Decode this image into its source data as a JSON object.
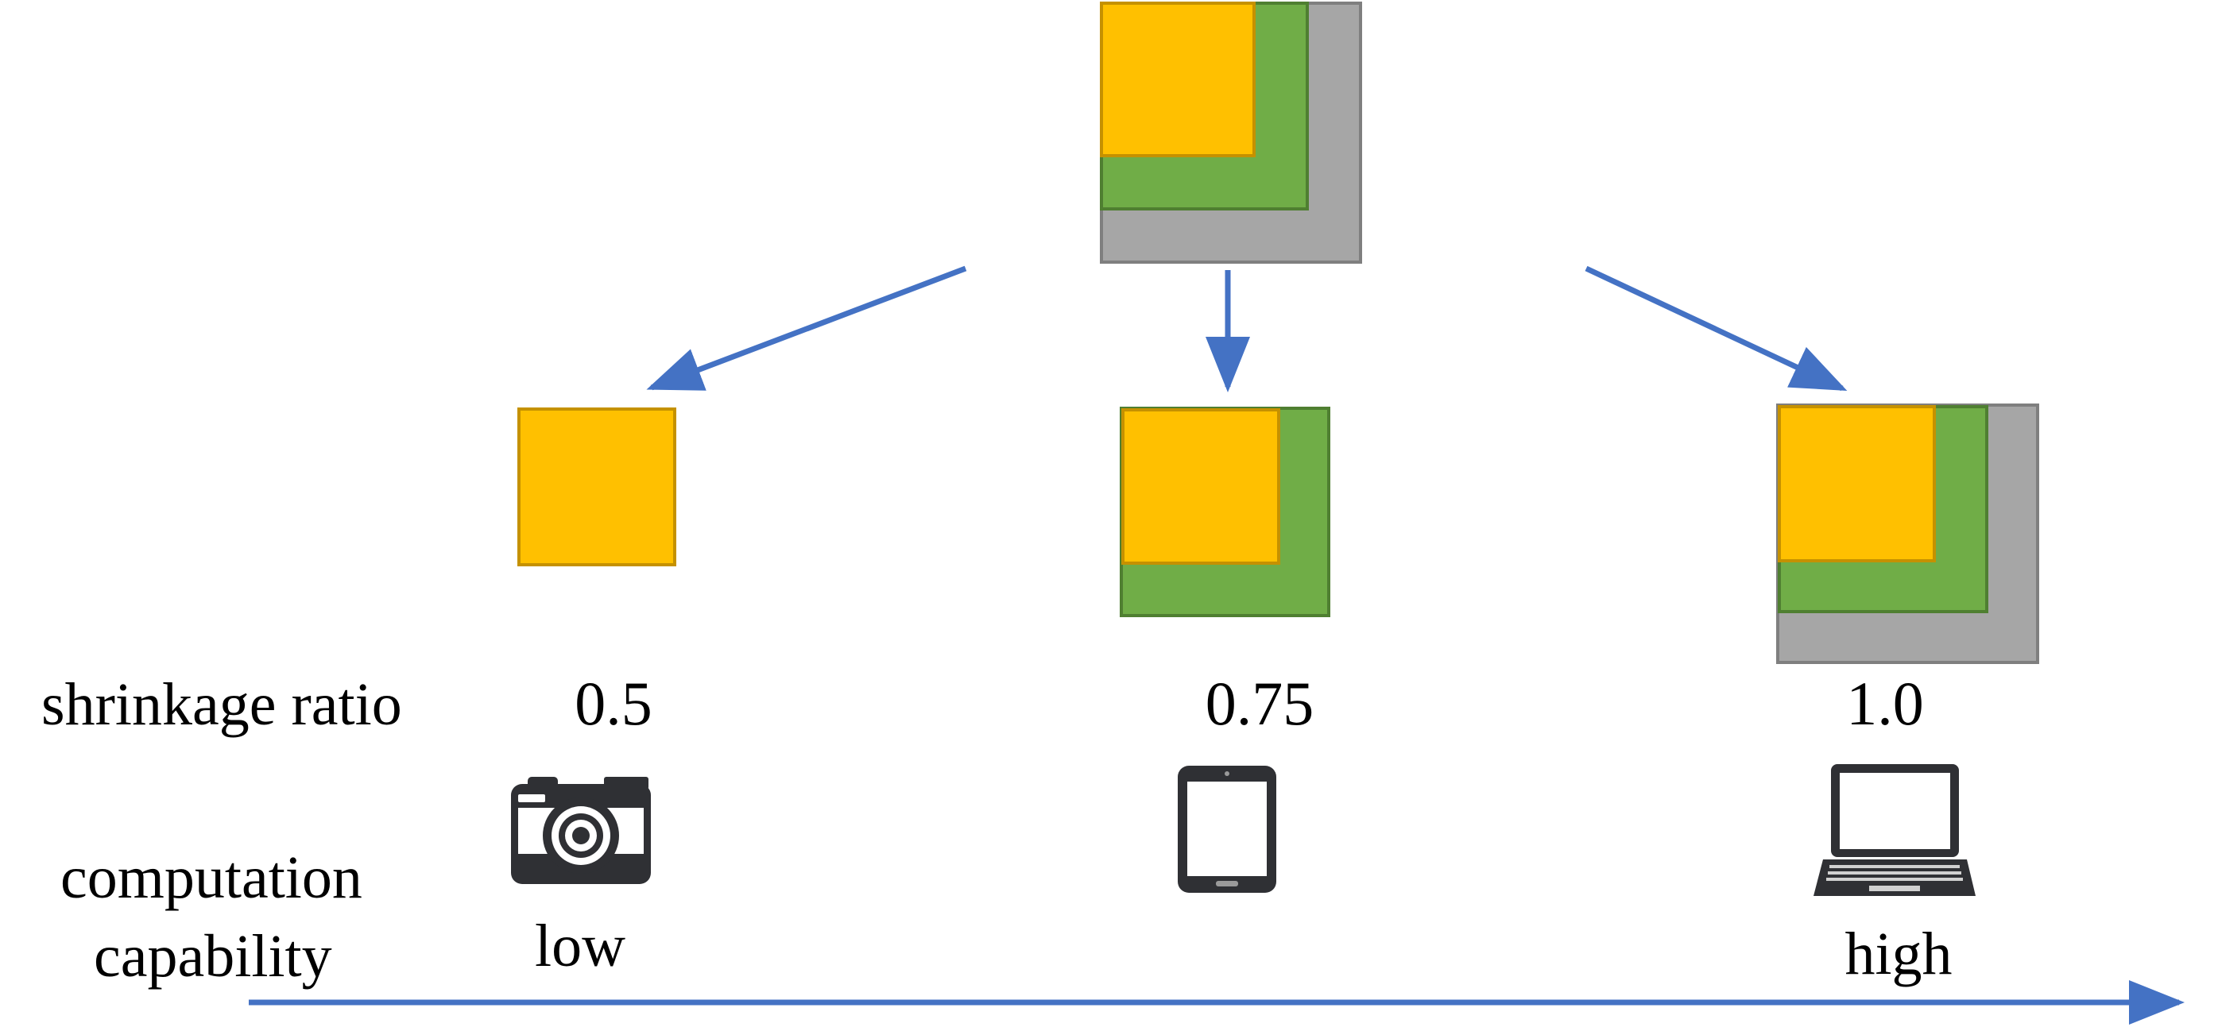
{
  "row_labels": {
    "shrinkage": "shrinkage ratio",
    "computation_line1": "computation",
    "computation_line2": "capability"
  },
  "variants": [
    {
      "ratio": "0.5",
      "device_icon": "camera-icon",
      "capability": "low"
    },
    {
      "ratio": "0.75",
      "device_icon": "tablet-icon",
      "capability": ""
    },
    {
      "ratio": "1.0",
      "device_icon": "laptop-icon",
      "capability": "high"
    }
  ],
  "colors": {
    "yellow": "#FFC000",
    "yellow_border": "#C59100",
    "green": "#70AD47",
    "green_border": "#4F7F31",
    "gray": "#A6A6A6",
    "gray_border": "#7F7F7F",
    "arrow": "#4472C4",
    "icon": "#2F3034"
  }
}
